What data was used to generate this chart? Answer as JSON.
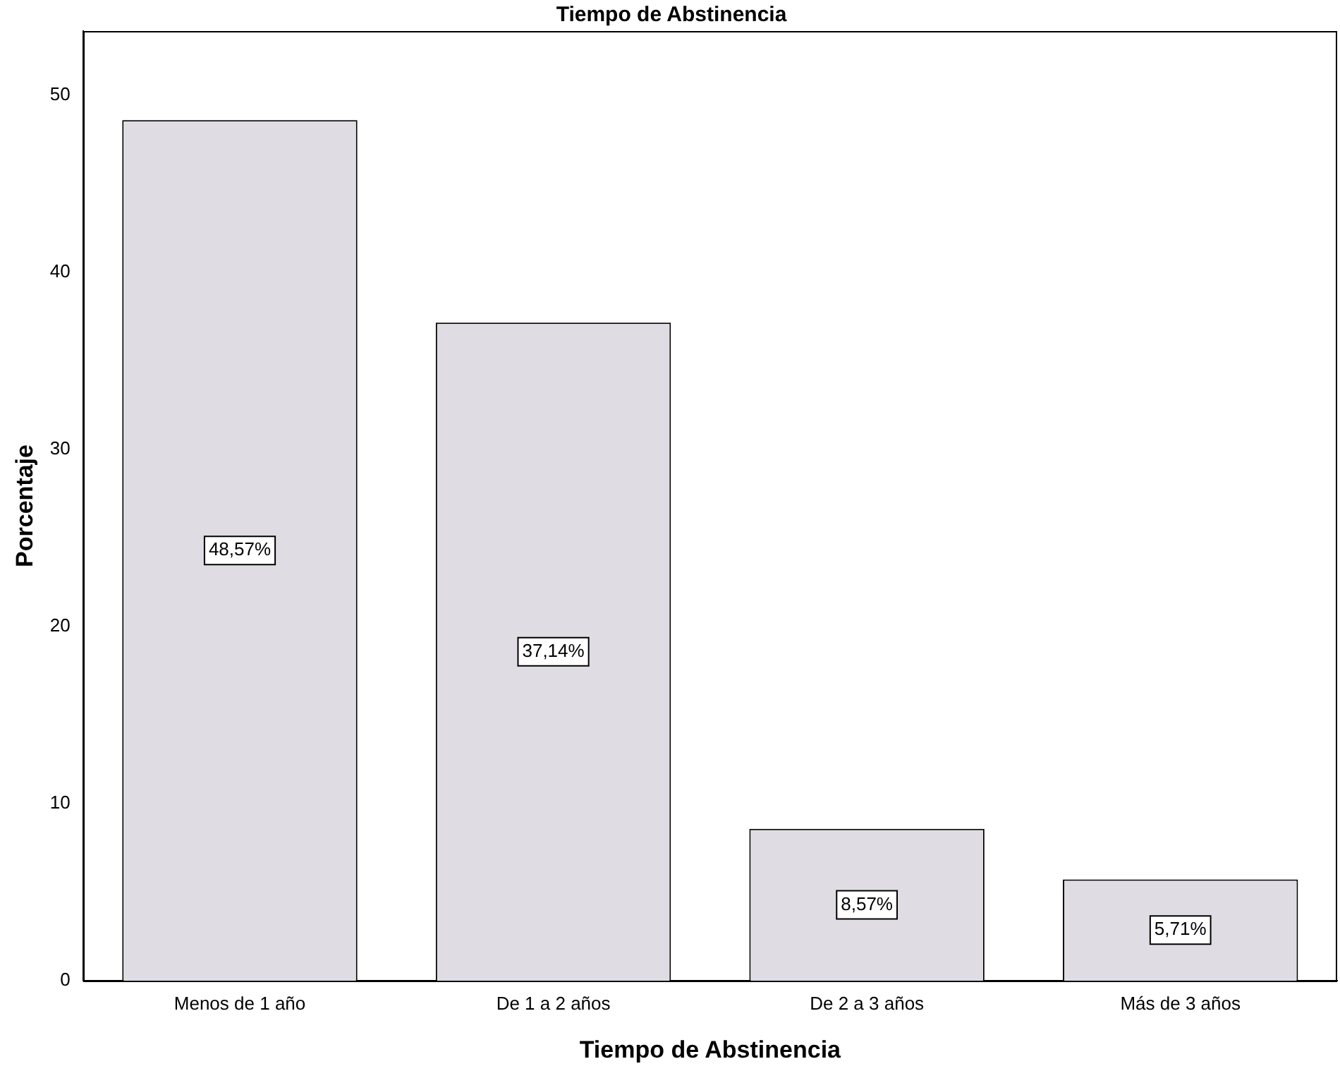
{
  "chart_data": {
    "type": "bar",
    "title": "Tiempo de Abstinencia",
    "xlabel": "Tiempo de Abstinencia",
    "ylabel": "Porcentaje",
    "categories": [
      "Menos de 1 año",
      "De 1 a 2 años",
      "De 2 a 3 años",
      "Más de 3 años"
    ],
    "values": [
      48.57,
      37.14,
      8.57,
      5.71
    ],
    "value_labels": [
      "48,57%",
      "37,14%",
      "8,57%",
      "5,71%"
    ],
    "color": "#dfdde3",
    "ylim": [
      0,
      53.6
    ],
    "yticks": [
      0,
      10,
      20,
      30,
      40,
      50
    ]
  }
}
